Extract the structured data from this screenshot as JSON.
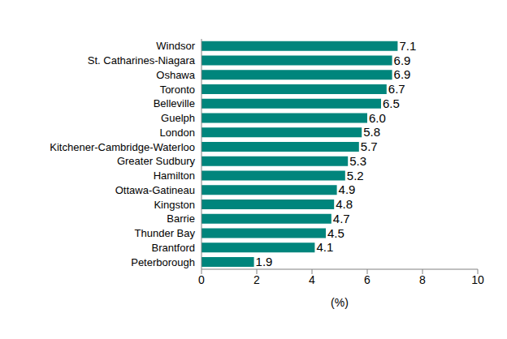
{
  "chart_data": {
    "type": "bar",
    "orientation": "horizontal",
    "categories": [
      "Windsor",
      "St. Catharines-Niagara",
      "Oshawa",
      "Toronto",
      "Belleville",
      "Guelph",
      "London",
      "Kitchener-Cambridge-Waterloo",
      "Greater Sudbury",
      "Hamilton",
      "Ottawa-Gatineau",
      "Kingston",
      "Barrie",
      "Thunder Bay",
      "Brantford",
      "Peterborough"
    ],
    "values": [
      7.1,
      6.9,
      6.9,
      6.7,
      6.5,
      6.0,
      5.8,
      5.7,
      5.3,
      5.2,
      4.9,
      4.8,
      4.7,
      4.5,
      4.1,
      1.9
    ],
    "value_labels": [
      "7.1",
      "6.9",
      "6.9",
      "6.7",
      "6.5",
      "6.0",
      "5.8",
      "5.7",
      "5.3",
      "5.2",
      "4.9",
      "4.8",
      "4.7",
      "4.5",
      "4.1",
      "1.9"
    ],
    "color": "#00857c",
    "x_label": "(%)",
    "xlim": [
      0,
      10
    ],
    "xticks": [
      0,
      2,
      4,
      6,
      8,
      10
    ],
    "grid": false,
    "data_labels": true
  }
}
